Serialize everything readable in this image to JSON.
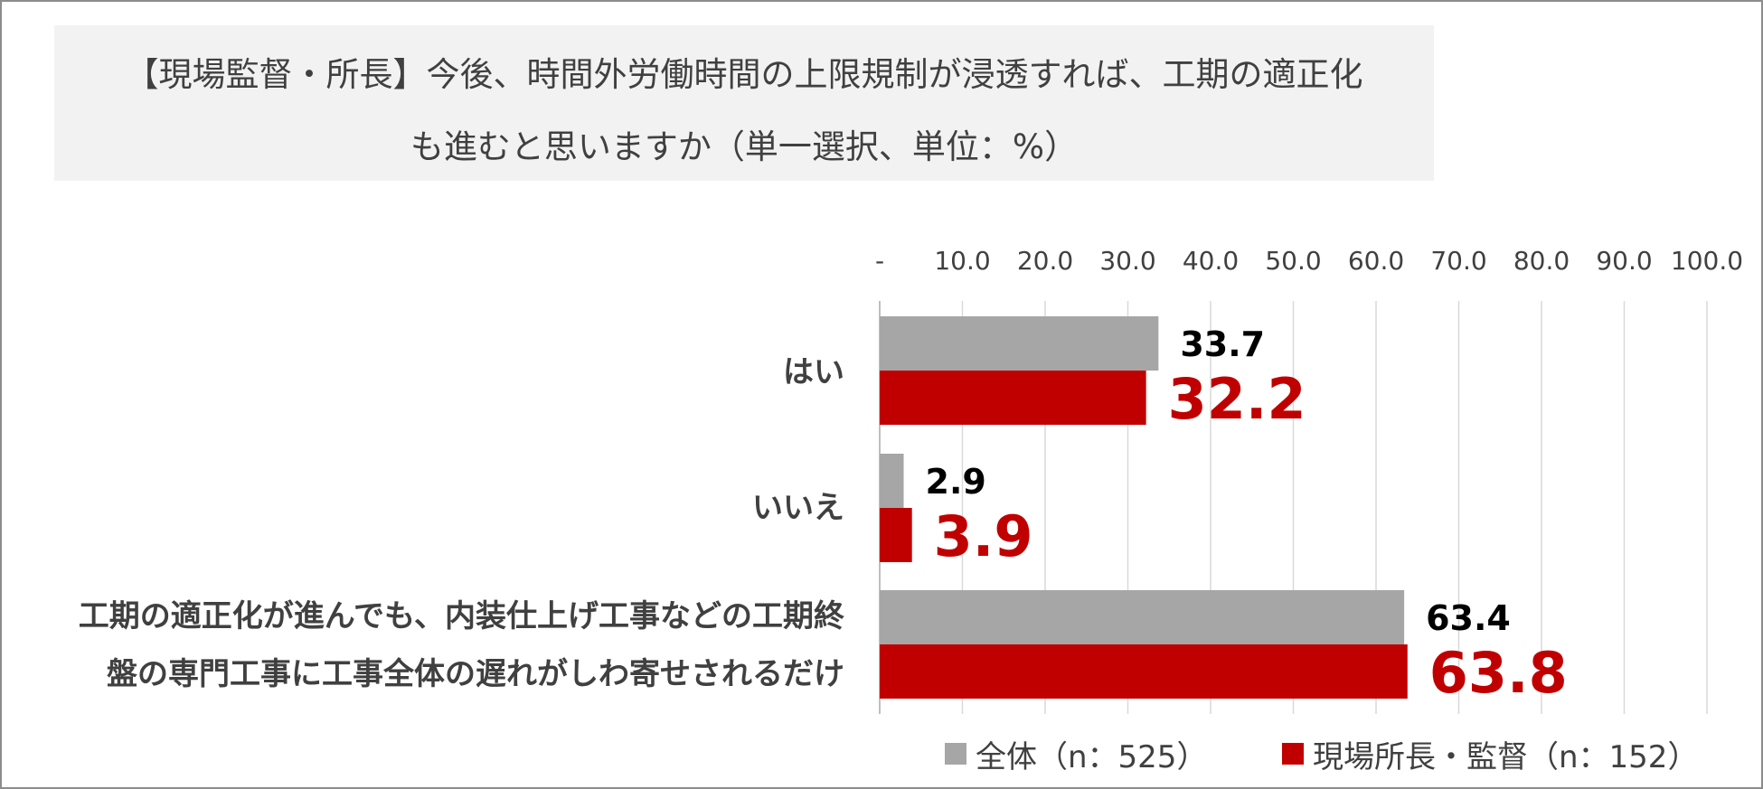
{
  "title": {
    "line1": "【現場監督・所長】今後、時間外労働時間の上限規制が浸透すれば、工期の適正化",
    "line2": "も進むと思いますか（単一選択、単位：%）"
  },
  "colors": {
    "overall": "#a6a6a6",
    "site": "#c00000",
    "grid": "#d9d9d9",
    "axis": "#bfbfbf",
    "text": "#404040"
  },
  "chart_data": {
    "type": "bar",
    "orientation": "horizontal",
    "categories": [
      [
        "はい"
      ],
      [
        "いいえ"
      ],
      [
        "工期の適正化が進んでも、内装仕上げ工事などの工期終",
        "盤の専門工事に工事全体の遅れがしわ寄せされるだけ"
      ]
    ],
    "series": [
      {
        "name": "全体（n：525）",
        "values": [
          33.7,
          2.9,
          63.4
        ],
        "labels": [
          "33.7",
          "2.9",
          "63.4"
        ]
      },
      {
        "name": "現場所長・監督（n：152）",
        "values": [
          32.2,
          3.9,
          63.8
        ],
        "labels": [
          "32.2",
          "3.9",
          "63.8"
        ]
      }
    ],
    "xlim": [
      0,
      100
    ],
    "ticks": [
      0,
      10,
      20,
      30,
      40,
      50,
      60,
      70,
      80,
      90,
      100
    ],
    "tick_labels": [
      "-",
      "10.0",
      "20.0",
      "30.0",
      "40.0",
      "50.0",
      "60.0",
      "70.0",
      "80.0",
      "90.0",
      "100.0"
    ],
    "grid": true,
    "legend": "bottom"
  }
}
